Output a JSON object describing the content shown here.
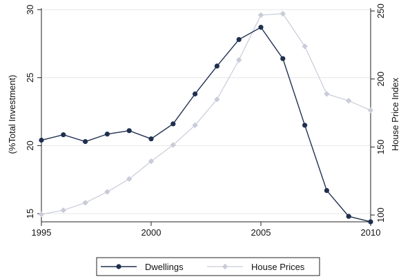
{
  "chart_data": {
    "type": "line",
    "x": [
      1995,
      1996,
      1997,
      1998,
      1999,
      2000,
      2001,
      2002,
      2003,
      2004,
      2005,
      2006,
      2007,
      2008,
      2009,
      2010
    ],
    "xlim": [
      1995,
      2010
    ],
    "xticks": [
      "1995",
      "2000",
      "2005",
      "2010"
    ],
    "ylabel": "(%Total Investment)",
    "ylim": [
      14.5,
      30.1
    ],
    "yticks": [
      "15",
      "20",
      "25",
      "30"
    ],
    "y2label": "House Price Index",
    "y2lim": [
      96,
      252
    ],
    "y2ticks": [
      "100",
      "150",
      "200",
      "250"
    ],
    "grid": true,
    "legend_position": "bottom",
    "series": [
      {
        "name": "Dwellings",
        "axis": "left",
        "color": "#1f2f4f",
        "marker": "circle",
        "values": [
          20.4,
          20.8,
          20.3,
          20.85,
          21.1,
          20.5,
          21.6,
          23.8,
          25.85,
          27.8,
          28.7,
          26.4,
          21.5,
          16.7,
          14.8,
          14.4
        ]
      },
      {
        "name": "House Prices",
        "axis": "right",
        "color": "#c9ccd8",
        "marker": "diamond",
        "values": [
          100.5,
          103.5,
          109,
          117,
          126.5,
          139.5,
          151.5,
          166,
          185,
          214,
          247,
          248,
          224,
          189,
          184,
          177
        ]
      }
    ]
  }
}
